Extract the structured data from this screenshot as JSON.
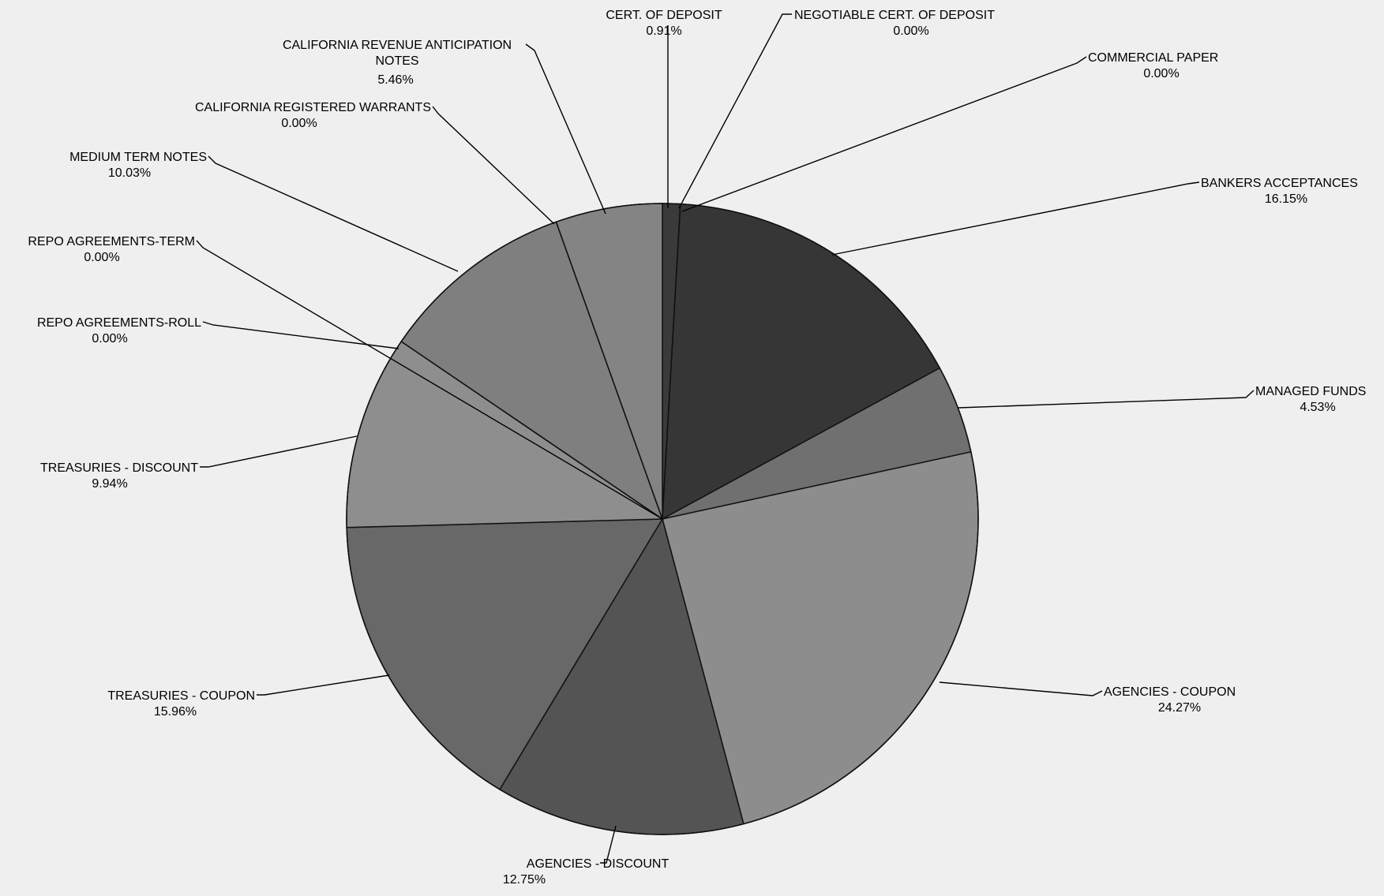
{
  "chart_data": {
    "type": "pie",
    "title": "",
    "start": "12 o'clock",
    "direction": "clockwise",
    "slices": [
      {
        "label": "CERT. OF DEPOSIT",
        "value": 0.91,
        "value_text": "0.91%",
        "color": "#3a3a3a"
      },
      {
        "label": "NEGOTIABLE  CERT. OF DEPOSIT",
        "value": 0.0,
        "value_text": "0.00%",
        "color": "#505050"
      },
      {
        "label": "COMMERCIAL PAPER",
        "value": 0.0,
        "value_text": "0.00%",
        "color": "#4a4a4a"
      },
      {
        "label": "BANKERS ACCEPTANCES",
        "value": 16.15,
        "value_text": "16.15%",
        "color": "#363636"
      },
      {
        "label": "MANAGED FUNDS",
        "value": 4.53,
        "value_text": "4.53%",
        "color": "#707070"
      },
      {
        "label": "AGENCIES - COUPON",
        "value": 24.27,
        "value_text": "24.27%",
        "color": "#8d8d8d"
      },
      {
        "label": "AGENCIES - DISCOUNT",
        "value": 12.75,
        "value_text": "12.75%",
        "color": "#545454"
      },
      {
        "label": "TREASURIES - COUPON",
        "value": 15.96,
        "value_text": "15.96%",
        "color": "#686868"
      },
      {
        "label": "TREASURIES - DISCOUNT",
        "value": 9.94,
        "value_text": "9.94%",
        "color": "#8e8e8e"
      },
      {
        "label": "REPO AGREEMENTS-ROLL",
        "value": 0.0,
        "value_text": "0.00%",
        "color": "#7a7a7a"
      },
      {
        "label": "REPO AGREEMENTS-TERM",
        "value": 0.0,
        "value_text": "0.00%",
        "color": "#7a7a7a"
      },
      {
        "label": "MEDIUM TERM NOTES",
        "value": 10.03,
        "value_text": "10.03%",
        "color": "#7f7f7f"
      },
      {
        "label": "CALIFORNIA REGISTERED WARRANTS",
        "value": 0.0,
        "value_text": "0.00%",
        "color": "#7a7a7a"
      },
      {
        "label": "CALIFORNIA REVENUE ANTICIPATION NOTES",
        "value": 5.46,
        "value_text": "5.46%",
        "color": "#848484"
      }
    ]
  }
}
